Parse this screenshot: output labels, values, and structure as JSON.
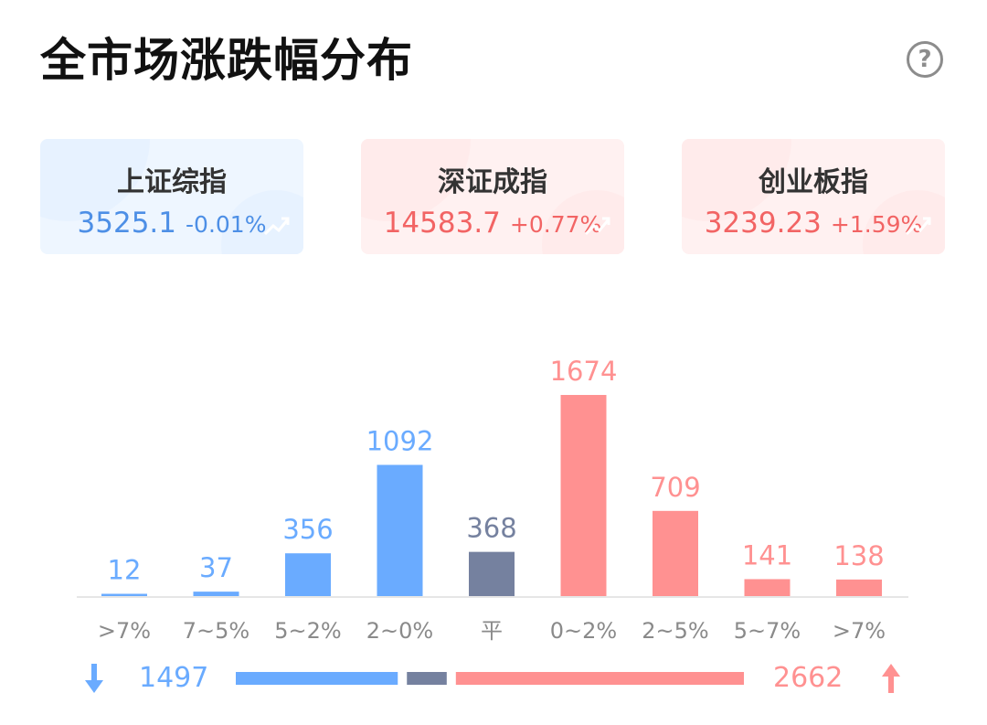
{
  "header": {
    "title": "全市场涨跌幅分布",
    "help_icon": "?"
  },
  "indices": [
    {
      "name": "上证综指",
      "value": "3525.1",
      "change": "-0.01%",
      "theme": "blue",
      "color": "#4d8fe6"
    },
    {
      "name": "深证成指",
      "value": "14583.7",
      "change": "+0.77%",
      "theme": "red",
      "color": "#f26464"
    },
    {
      "name": "创业板指",
      "value": "3239.23",
      "change": "+1.59%",
      "theme": "red",
      "color": "#f26464"
    }
  ],
  "chart_data": {
    "type": "bar",
    "categories": [
      ">7%",
      "7~5%",
      "5~2%",
      "2~0%",
      "平",
      "0~2%",
      "2~5%",
      "5~7%",
      ">7%"
    ],
    "values": [
      12,
      37,
      356,
      1092,
      368,
      1674,
      709,
      141,
      138
    ],
    "bar_colors": [
      "#6aabff",
      "#6aabff",
      "#6aabff",
      "#6aabff",
      "#75819f",
      "#ff9191",
      "#ff9191",
      "#ff9191",
      "#ff9191"
    ],
    "label_colors": [
      "#6aabff",
      "#6aabff",
      "#6aabff",
      "#6aabff",
      "#75819f",
      "#ff9191",
      "#ff9191",
      "#ff9191",
      "#ff9191"
    ]
  },
  "summary": {
    "down_count": "1497",
    "up_count": "2662",
    "down_value": 1497,
    "flat_value": 368,
    "up_value": 2662,
    "down_color": "#6aabff",
    "flat_color": "#75819f",
    "up_color": "#ff9191",
    "down_icon": "arrow-down-icon",
    "up_icon": "arrow-up-icon"
  }
}
